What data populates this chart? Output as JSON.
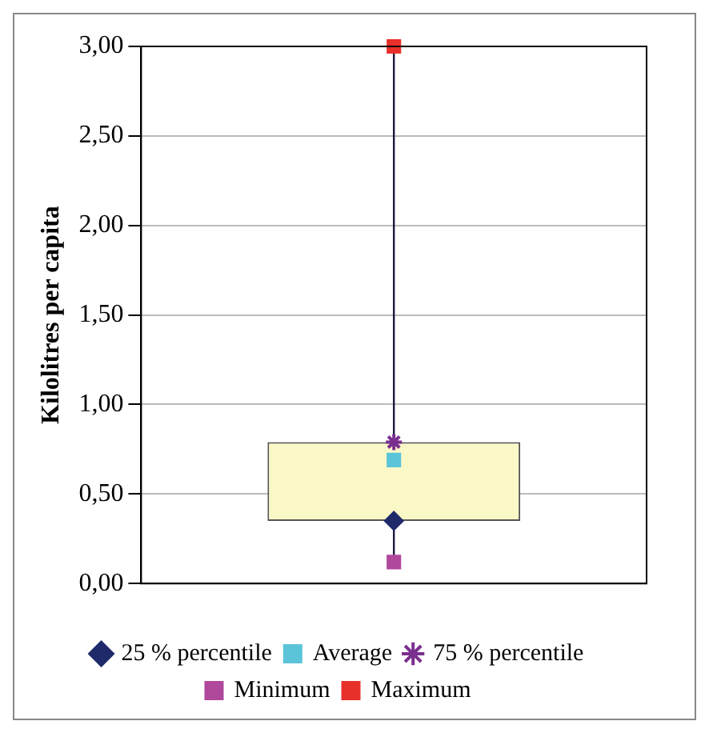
{
  "chart_data": {
    "type": "scatter",
    "ylabel": "Kilolitres per capita",
    "categories": [
      null
    ],
    "ylim": [
      0,
      3
    ],
    "yticks": [
      {
        "value": 0,
        "label": "0,00"
      },
      {
        "value": 0.5,
        "label": "0,50"
      },
      {
        "value": 1,
        "label": "1,00"
      },
      {
        "value": 1.5,
        "label": "1,50"
      },
      {
        "value": 2,
        "label": "2,00"
      },
      {
        "value": 2.5,
        "label": "2,50"
      },
      {
        "value": 3,
        "label": "3,00"
      }
    ],
    "grid": "y",
    "legend": "bottom",
    "series": [
      {
        "type": "bar",
        "base": [
          0.35
        ],
        "values": [
          0.44
        ],
        "color": "#fbf8c8"
      },
      {
        "name": "25 % percentile",
        "marker": "diamond",
        "color": "#1f2a6b",
        "values": [
          0.35
        ]
      },
      {
        "name": "Average",
        "marker": "square",
        "color": "#5bc4d8",
        "values": [
          0.69
        ]
      },
      {
        "name": "75 % percentile",
        "marker": "cross",
        "color": "#7a2f8f",
        "values": [
          0.79
        ]
      },
      {
        "name": "Minimum",
        "marker": "square",
        "color": "#b0489c",
        "values": [
          0.12
        ]
      },
      {
        "name": "Maximum",
        "marker": "square",
        "color": "#e8302a",
        "values": [
          3.0
        ]
      }
    ]
  }
}
